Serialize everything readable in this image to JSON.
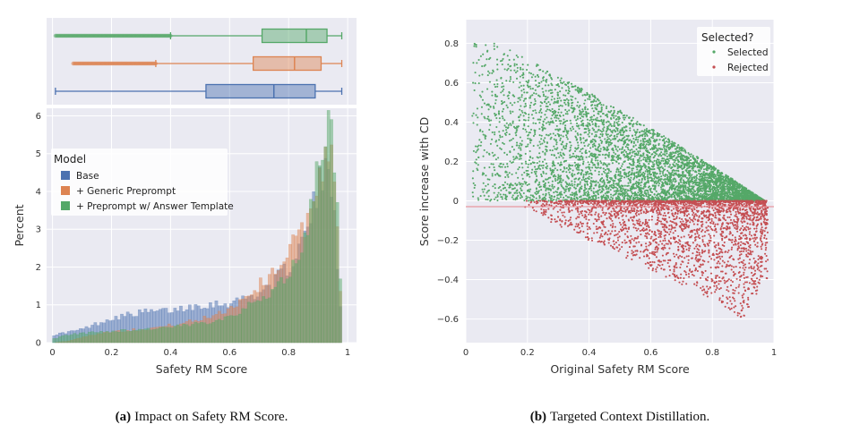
{
  "chart_data": [
    {
      "id": "a",
      "type": "box+histogram",
      "caption_label": "(a)",
      "caption_text": "Impact on Safety RM Score.",
      "xlabel": "Safety RM Score",
      "ylabel": "Percent",
      "xlim": [
        -0.02,
        1.03
      ],
      "ylim": [
        0,
        6.2
      ],
      "xticks": [
        "0",
        "0.2",
        "0.4",
        "0.6",
        "0.8",
        "1"
      ],
      "xtick_values": [
        0,
        0.2,
        0.4,
        0.6,
        0.8,
        1.0
      ],
      "yticks": [
        "0",
        "1",
        "2",
        "3",
        "4",
        "5",
        "6"
      ],
      "ytick_values": [
        0,
        1,
        2,
        3,
        4,
        5,
        6
      ],
      "grid": true,
      "legend": {
        "title": "Model",
        "placement": "upper-left",
        "entries": [
          "Base",
          "+ Generic Preprompt",
          "+ Preprompt w/ Answer Template"
        ]
      },
      "colors": [
        "#4c72b0",
        "#dd8452",
        "#55a868"
      ],
      "boxplots": [
        {
          "series": "Base",
          "whisker_low": 0.01,
          "q1": 0.52,
          "median": 0.75,
          "q3": 0.89,
          "whisker_high": 0.98,
          "outliers_from": null,
          "outliers_to": null
        },
        {
          "series": "+ Generic Preprompt",
          "whisker_low": 0.35,
          "q1": 0.68,
          "median": 0.82,
          "q3": 0.91,
          "whisker_high": 0.98,
          "outliers_from": 0.07,
          "outliers_to": 0.35
        },
        {
          "series": "+ Preprompt w/ Answer Template",
          "whisker_low": 0.4,
          "q1": 0.71,
          "median": 0.86,
          "q3": 0.93,
          "whisker_high": 0.98,
          "outliers_from": 0.01,
          "outliers_to": 0.4
        }
      ],
      "series": [
        {
          "name": "Base",
          "key_points": [
            [
              0.0,
              0.2
            ],
            [
              0.1,
              0.35
            ],
            [
              0.2,
              0.65
            ],
            [
              0.3,
              0.8
            ],
            [
              0.4,
              0.85
            ],
            [
              0.5,
              1.0
            ],
            [
              0.6,
              1.05
            ],
            [
              0.7,
              1.3
            ],
            [
              0.75,
              1.6
            ],
            [
              0.8,
              2.0
            ],
            [
              0.85,
              2.7
            ],
            [
              0.88,
              3.4
            ],
            [
              0.9,
              4.1
            ],
            [
              0.92,
              4.4
            ],
            [
              0.95,
              4.3
            ],
            [
              0.97,
              1.5
            ],
            [
              0.985,
              0.0
            ]
          ]
        },
        {
          "name": "+ Generic Preprompt",
          "key_points": [
            [
              0.0,
              0.0
            ],
            [
              0.06,
              0.05
            ],
            [
              0.1,
              0.15
            ],
            [
              0.2,
              0.3
            ],
            [
              0.3,
              0.35
            ],
            [
              0.4,
              0.45
            ],
            [
              0.5,
              0.6
            ],
            [
              0.6,
              0.9
            ],
            [
              0.7,
              1.5
            ],
            [
              0.75,
              1.9
            ],
            [
              0.8,
              2.4
            ],
            [
              0.85,
              3.0
            ],
            [
              0.88,
              3.6
            ],
            [
              0.9,
              4.3
            ],
            [
              0.92,
              5.0
            ],
            [
              0.94,
              5.2
            ],
            [
              0.96,
              3.5
            ],
            [
              0.98,
              0.8
            ],
            [
              0.985,
              0.0
            ]
          ]
        },
        {
          "name": "+ Preprompt w/ Answer Template",
          "key_points": [
            [
              0.0,
              0.1
            ],
            [
              0.05,
              0.2
            ],
            [
              0.1,
              0.25
            ],
            [
              0.2,
              0.3
            ],
            [
              0.3,
              0.35
            ],
            [
              0.4,
              0.4
            ],
            [
              0.5,
              0.5
            ],
            [
              0.6,
              0.7
            ],
            [
              0.7,
              1.1
            ],
            [
              0.75,
              1.4
            ],
            [
              0.8,
              1.8
            ],
            [
              0.85,
              2.6
            ],
            [
              0.88,
              3.6
            ],
            [
              0.9,
              4.8
            ],
            [
              0.92,
              5.7
            ],
            [
              0.94,
              5.95
            ],
            [
              0.96,
              4.2
            ],
            [
              0.975,
              1.6
            ],
            [
              0.985,
              0.0
            ]
          ]
        }
      ]
    },
    {
      "id": "b",
      "type": "scatter",
      "caption_label": "(b)",
      "caption_text": "Targeted Context Distillation.",
      "xlabel": "Original Safety RM Score",
      "ylabel": "Score increase with CD",
      "xlim": [
        0,
        1
      ],
      "ylim": [
        -0.72,
        0.92
      ],
      "xticks": [
        "0",
        "0.2",
        "0.4",
        "0.6",
        "0.8",
        "1"
      ],
      "xtick_values": [
        0,
        0.2,
        0.4,
        0.6,
        0.8,
        1.0
      ],
      "yticks": [
        "−0.6",
        "−0.4",
        "−0.2",
        "0",
        "0.2",
        "0.4",
        "0.6",
        "0.8"
      ],
      "ytick_values": [
        -0.6,
        -0.4,
        -0.2,
        0,
        0.2,
        0.4,
        0.6,
        0.8
      ],
      "grid": true,
      "legend": {
        "title": "Selected?",
        "placement": "upper-right",
        "entries": [
          "Selected",
          "Rejected"
        ]
      },
      "colors": [
        "#55a868",
        "#c44e52"
      ],
      "series": [
        {
          "name": "Selected",
          "region": "0 < y <= 0.92 - x (upper envelope)",
          "approx_envelope": [
            [
              0.02,
              0.8
            ],
            [
              0.1,
              0.8
            ],
            [
              0.2,
              0.72
            ],
            [
              0.4,
              0.55
            ],
            [
              0.6,
              0.37
            ],
            [
              0.8,
              0.18
            ],
            [
              0.97,
              0.0
            ]
          ]
        },
        {
          "name": "Rejected",
          "region": "y < 0 (lower envelope)",
          "approx_envelope": [
            [
              0.2,
              -0.05
            ],
            [
              0.4,
              -0.2
            ],
            [
              0.6,
              -0.35
            ],
            [
              0.8,
              -0.5
            ],
            [
              0.9,
              -0.6
            ],
            [
              0.97,
              -0.4
            ]
          ]
        }
      ]
    }
  ]
}
